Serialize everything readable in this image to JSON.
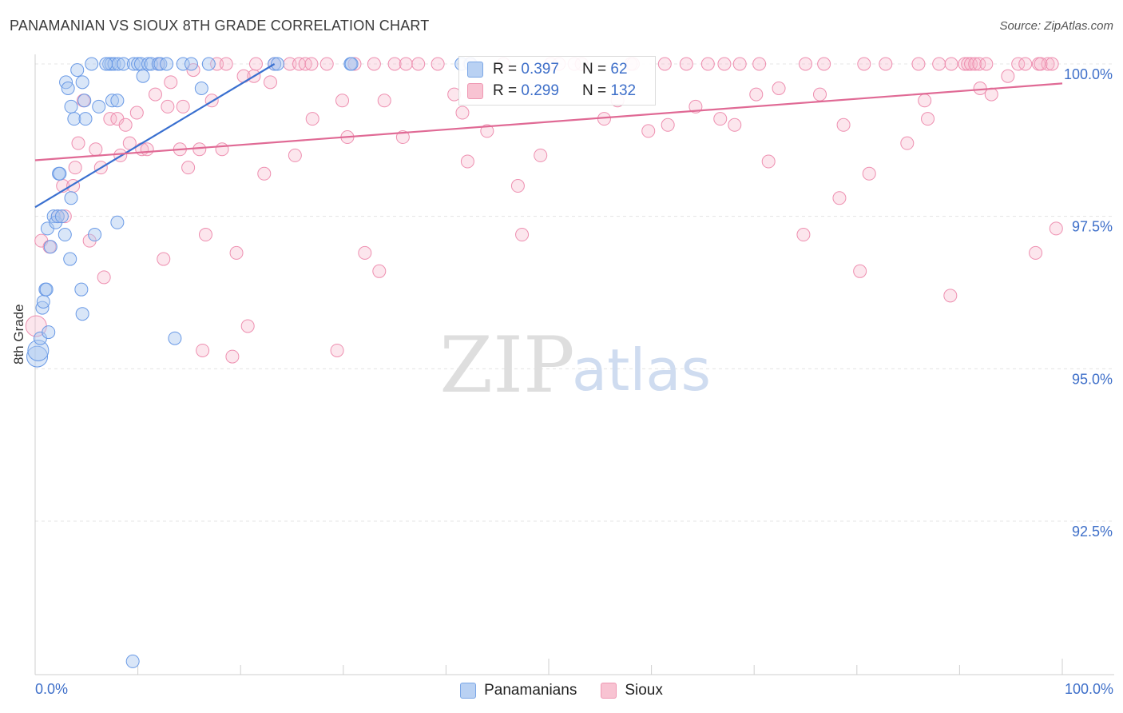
{
  "title": "PANAMANIAN VS SIOUX 8TH GRADE CORRELATION CHART",
  "source": "Source: ZipAtlas.com",
  "watermark": {
    "zip": "ZIP",
    "atlas": "atlas"
  },
  "legend_top": {
    "rows": [
      {
        "r_label": "R = ",
        "r_value": "0.397",
        "n_label": "N = ",
        "n_value": "62"
      },
      {
        "r_label": "R = ",
        "r_value": "0.299",
        "n_label": "N = ",
        "n_value": "132"
      }
    ]
  },
  "legend_bottom": {
    "panamanians": "Panamanians",
    "sioux": "Sioux"
  },
  "colors": {
    "blue": "#6a9ae6",
    "blue_line": "#3a70d0",
    "pink": "#ee8fb0",
    "pink_line": "#e06a95",
    "axis_text": "#3e6fc9"
  },
  "chart_data": {
    "type": "scatter",
    "title": "PANAMANIAN VS SIOUX 8TH GRADE CORRELATION CHART",
    "xlabel": "",
    "ylabel": "8th Grade",
    "xlim": [
      0,
      100
    ],
    "ylim": [
      90.2,
      100.2
    ],
    "x_tick_labels": [
      "0.0%",
      "100.0%"
    ],
    "y_ticks": [
      92.5,
      95.0,
      97.5,
      100.0
    ],
    "y_tick_labels": [
      "92.5%",
      "95.0%",
      "97.5%",
      "100.0%"
    ],
    "grid": true,
    "series": [
      {
        "name": "Panamanians",
        "R": 0.397,
        "N": 62,
        "trend": {
          "x": [
            0,
            23.3
          ],
          "y": [
            97.65,
            100.0
          ]
        },
        "points": [
          [
            0.2,
            95.2
          ],
          [
            0.3,
            95.3
          ],
          [
            0.5,
            95.5
          ],
          [
            0.7,
            96.0
          ],
          [
            0.8,
            96.1
          ],
          [
            1.0,
            96.3
          ],
          [
            1.1,
            96.3
          ],
          [
            1.3,
            95.6
          ],
          [
            1.5,
            97.0
          ],
          [
            1.2,
            97.3
          ],
          [
            1.8,
            97.5
          ],
          [
            2.0,
            97.4
          ],
          [
            2.2,
            97.5
          ],
          [
            2.6,
            97.5
          ],
          [
            2.9,
            97.2
          ],
          [
            3.4,
            96.8
          ],
          [
            3.5,
            97.8
          ],
          [
            2.3,
            98.2
          ],
          [
            2.4,
            98.2
          ],
          [
            4.6,
            95.9
          ],
          [
            4.5,
            96.3
          ],
          [
            5.8,
            97.2
          ],
          [
            8.0,
            97.4
          ],
          [
            13.6,
            95.5
          ],
          [
            9.5,
            90.2
          ],
          [
            3.0,
            99.7
          ],
          [
            3.2,
            99.6
          ],
          [
            3.5,
            99.3
          ],
          [
            3.8,
            99.1
          ],
          [
            4.1,
            99.9
          ],
          [
            4.6,
            99.7
          ],
          [
            4.8,
            99.4
          ],
          [
            4.9,
            99.1
          ],
          [
            5.5,
            100.0
          ],
          [
            6.2,
            99.3
          ],
          [
            7.2,
            100.0
          ],
          [
            7.5,
            99.4
          ],
          [
            8.0,
            99.4
          ],
          [
            7.4,
            100.0
          ],
          [
            7.7,
            100.0
          ],
          [
            8.1,
            100.0
          ],
          [
            8.6,
            100.0
          ],
          [
            9.6,
            100.0
          ],
          [
            10.0,
            100.0
          ],
          [
            10.3,
            100.0
          ],
          [
            10.5,
            99.8
          ],
          [
            11.0,
            100.0
          ],
          [
            11.3,
            100.0
          ],
          [
            12.0,
            100.0
          ],
          [
            12.2,
            100.0
          ],
          [
            12.8,
            100.0
          ],
          [
            14.4,
            100.0
          ],
          [
            15.2,
            100.0
          ],
          [
            16.2,
            99.6
          ],
          [
            16.9,
            100.0
          ],
          [
            23.3,
            100.0
          ],
          [
            23.6,
            100.0
          ],
          [
            30.7,
            100.0
          ],
          [
            30.8,
            100.0
          ],
          [
            41.5,
            100.0
          ],
          [
            42.4,
            100.0
          ],
          [
            6.9,
            100.0
          ]
        ]
      },
      {
        "name": "Sioux",
        "R": 0.299,
        "N": 132,
        "trend": {
          "x": [
            0,
            100
          ],
          "y": [
            98.42,
            99.68
          ]
        },
        "points": [
          [
            0.1,
            95.7
          ],
          [
            0.6,
            97.1
          ],
          [
            1.4,
            97.0
          ],
          [
            2.2,
            97.5
          ],
          [
            2.7,
            98.0
          ],
          [
            2.9,
            97.5
          ],
          [
            3.7,
            98.0
          ],
          [
            3.9,
            98.3
          ],
          [
            4.2,
            98.7
          ],
          [
            4.7,
            99.4
          ],
          [
            5.3,
            97.1
          ],
          [
            5.9,
            98.6
          ],
          [
            6.4,
            98.3
          ],
          [
            6.7,
            96.5
          ],
          [
            7.3,
            99.1
          ],
          [
            8.0,
            99.1
          ],
          [
            8.3,
            98.5
          ],
          [
            8.8,
            99.0
          ],
          [
            9.2,
            98.7
          ],
          [
            9.9,
            99.2
          ],
          [
            10.4,
            98.6
          ],
          [
            10.9,
            98.6
          ],
          [
            11.7,
            99.5
          ],
          [
            12.0,
            100.0
          ],
          [
            12.5,
            96.8
          ],
          [
            12.9,
            99.3
          ],
          [
            13.2,
            99.7
          ],
          [
            14.1,
            98.6
          ],
          [
            14.4,
            99.3
          ],
          [
            14.9,
            98.3
          ],
          [
            15.4,
            99.9
          ],
          [
            16.0,
            98.6
          ],
          [
            16.3,
            95.3
          ],
          [
            16.6,
            97.2
          ],
          [
            17.2,
            99.4
          ],
          [
            17.7,
            100.0
          ],
          [
            18.2,
            98.6
          ],
          [
            18.6,
            100.0
          ],
          [
            19.2,
            95.2
          ],
          [
            19.6,
            96.9
          ],
          [
            20.3,
            99.8
          ],
          [
            20.7,
            95.7
          ],
          [
            21.3,
            99.8
          ],
          [
            21.5,
            100.0
          ],
          [
            22.3,
            98.2
          ],
          [
            22.9,
            99.7
          ],
          [
            23.3,
            100.0
          ],
          [
            24.8,
            100.0
          ],
          [
            25.3,
            98.5
          ],
          [
            25.7,
            100.0
          ],
          [
            26.3,
            100.0
          ],
          [
            26.9,
            100.0
          ],
          [
            27.0,
            99.1
          ],
          [
            28.4,
            100.0
          ],
          [
            29.4,
            95.3
          ],
          [
            29.9,
            99.4
          ],
          [
            30.4,
            98.8
          ],
          [
            31.1,
            100.0
          ],
          [
            32.1,
            96.9
          ],
          [
            33.0,
            100.0
          ],
          [
            33.5,
            96.6
          ],
          [
            34.0,
            99.4
          ],
          [
            35.0,
            100.0
          ],
          [
            35.8,
            98.8
          ],
          [
            36.1,
            100.0
          ],
          [
            37.3,
            100.0
          ],
          [
            39.2,
            100.0
          ],
          [
            40.8,
            99.5
          ],
          [
            41.6,
            99.2
          ],
          [
            42.1,
            98.4
          ],
          [
            42.3,
            100.0
          ],
          [
            44.0,
            98.9
          ],
          [
            45.6,
            100.0
          ],
          [
            47.0,
            98.0
          ],
          [
            47.4,
            97.2
          ],
          [
            49.2,
            98.5
          ],
          [
            50.2,
            100.0
          ],
          [
            51.0,
            100.0
          ],
          [
            52.5,
            100.0
          ],
          [
            53.2,
            100.0
          ],
          [
            55.4,
            99.1
          ],
          [
            56.7,
            99.4
          ],
          [
            58.0,
            100.0
          ],
          [
            58.2,
            100.0
          ],
          [
            59.7,
            98.9
          ],
          [
            61.3,
            100.0
          ],
          [
            61.6,
            99.0
          ],
          [
            63.4,
            100.0
          ],
          [
            64.3,
            99.3
          ],
          [
            65.5,
            100.0
          ],
          [
            66.7,
            99.1
          ],
          [
            67.1,
            100.0
          ],
          [
            68.1,
            99.0
          ],
          [
            68.6,
            100.0
          ],
          [
            70.2,
            99.5
          ],
          [
            70.5,
            100.0
          ],
          [
            71.4,
            98.4
          ],
          [
            72.4,
            99.6
          ],
          [
            74.8,
            97.2
          ],
          [
            75.0,
            100.0
          ],
          [
            76.4,
            99.5
          ],
          [
            76.8,
            100.0
          ],
          [
            78.3,
            97.8
          ],
          [
            78.7,
            99.0
          ],
          [
            80.3,
            96.6
          ],
          [
            80.7,
            100.0
          ],
          [
            81.2,
            98.2
          ],
          [
            82.8,
            100.0
          ],
          [
            84.9,
            98.7
          ],
          [
            86.0,
            100.0
          ],
          [
            86.6,
            99.4
          ],
          [
            86.9,
            99.1
          ],
          [
            88.0,
            100.0
          ],
          [
            89.1,
            96.2
          ],
          [
            89.2,
            100.0
          ],
          [
            90.5,
            100.0
          ],
          [
            90.8,
            100.0
          ],
          [
            91.1,
            100.0
          ],
          [
            91.5,
            100.0
          ],
          [
            91.9,
            100.0
          ],
          [
            92.0,
            99.6
          ],
          [
            92.6,
            100.0
          ],
          [
            93.1,
            99.5
          ],
          [
            94.7,
            99.8
          ],
          [
            95.7,
            100.0
          ],
          [
            96.4,
            100.0
          ],
          [
            97.7,
            100.0
          ],
          [
            98.6,
            100.0
          ],
          [
            97.9,
            100.0
          ],
          [
            97.4,
            96.9
          ],
          [
            99.4,
            97.3
          ],
          [
            99.0,
            100.0
          ]
        ]
      }
    ]
  }
}
